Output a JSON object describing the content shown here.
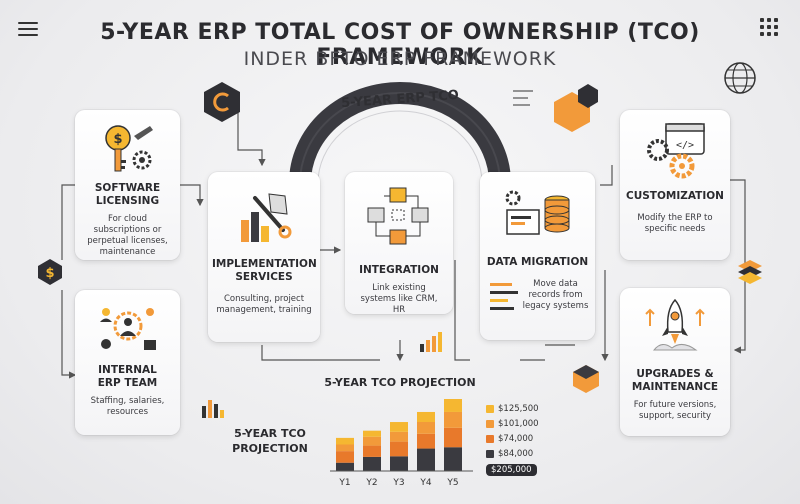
{
  "header": {
    "title": "5-YEAR ERP TOTAL COST OF OWNERSHIP (TCO) FRAMEWORK",
    "subtitle": "INDER BFTO ERP FRAMEWORK"
  },
  "center": {
    "arc_label": "5-YEAR ERP TCO"
  },
  "cards": {
    "software_licensing": {
      "title": "SOFTWARE LICENSING",
      "desc": "For cloud subscriptions or perpetual licenses, maintenance"
    },
    "internal_team": {
      "title": "INTERNAL ERP TEAM",
      "desc": "Staffing, salaries, resources"
    },
    "implementation": {
      "title": "IMPLEMENTATION SERVICES",
      "desc": "Consulting, project management, training"
    },
    "integration": {
      "title": "INTEGRATION",
      "desc": "Link existing systems like CRM, HR"
    },
    "data_migration": {
      "title": "DATA MIGRATION",
      "desc": "Move data records from legacy systems"
    },
    "customization": {
      "title": "CUSTOMIZATION",
      "desc": "Modify the ERP to specific needs"
    },
    "upgrades": {
      "title": "UPGRADES & MAINTENANCE",
      "desc": "For future versions, support, security"
    }
  },
  "chart_data": {
    "type": "bar",
    "title": "5-YEAR TCO PROJECTION",
    "side_label": "5-YEAR TCO PROJECTION",
    "categories": [
      "Y1",
      "Y2",
      "Y3",
      "Y4",
      "Y5"
    ],
    "legend": [
      {
        "label": "$125,500",
        "color": "#f5b731"
      },
      {
        "label": "$101,000",
        "color": "#f29a3a"
      },
      {
        "label": "$74,000",
        "color": "#e8792b"
      },
      {
        "label": "$84,000",
        "color": "#3a3a40"
      },
      {
        "label": "$205,000",
        "color": "#2d2d32",
        "highlight": true
      }
    ],
    "stacks": [
      [
        0.25,
        0.35,
        0.2,
        0.2
      ],
      [
        0.35,
        0.28,
        0.22,
        0.15
      ],
      [
        0.3,
        0.3,
        0.2,
        0.2
      ],
      [
        0.38,
        0.25,
        0.2,
        0.17
      ],
      [
        0.33,
        0.27,
        0.22,
        0.18
      ]
    ],
    "totals": [
      0.46,
      0.56,
      0.68,
      0.82,
      1.0
    ],
    "stack_colors": [
      "#3a3a40",
      "#e8792b",
      "#f29a3a",
      "#f5b731"
    ]
  },
  "colors": {
    "accent": "#f29a3a",
    "dark": "#2d2d32"
  },
  "icons": [
    "hamburger-icon",
    "grid-icon",
    "globe-icon",
    "dollar-icon",
    "stack-icon",
    "loop-icon"
  ]
}
